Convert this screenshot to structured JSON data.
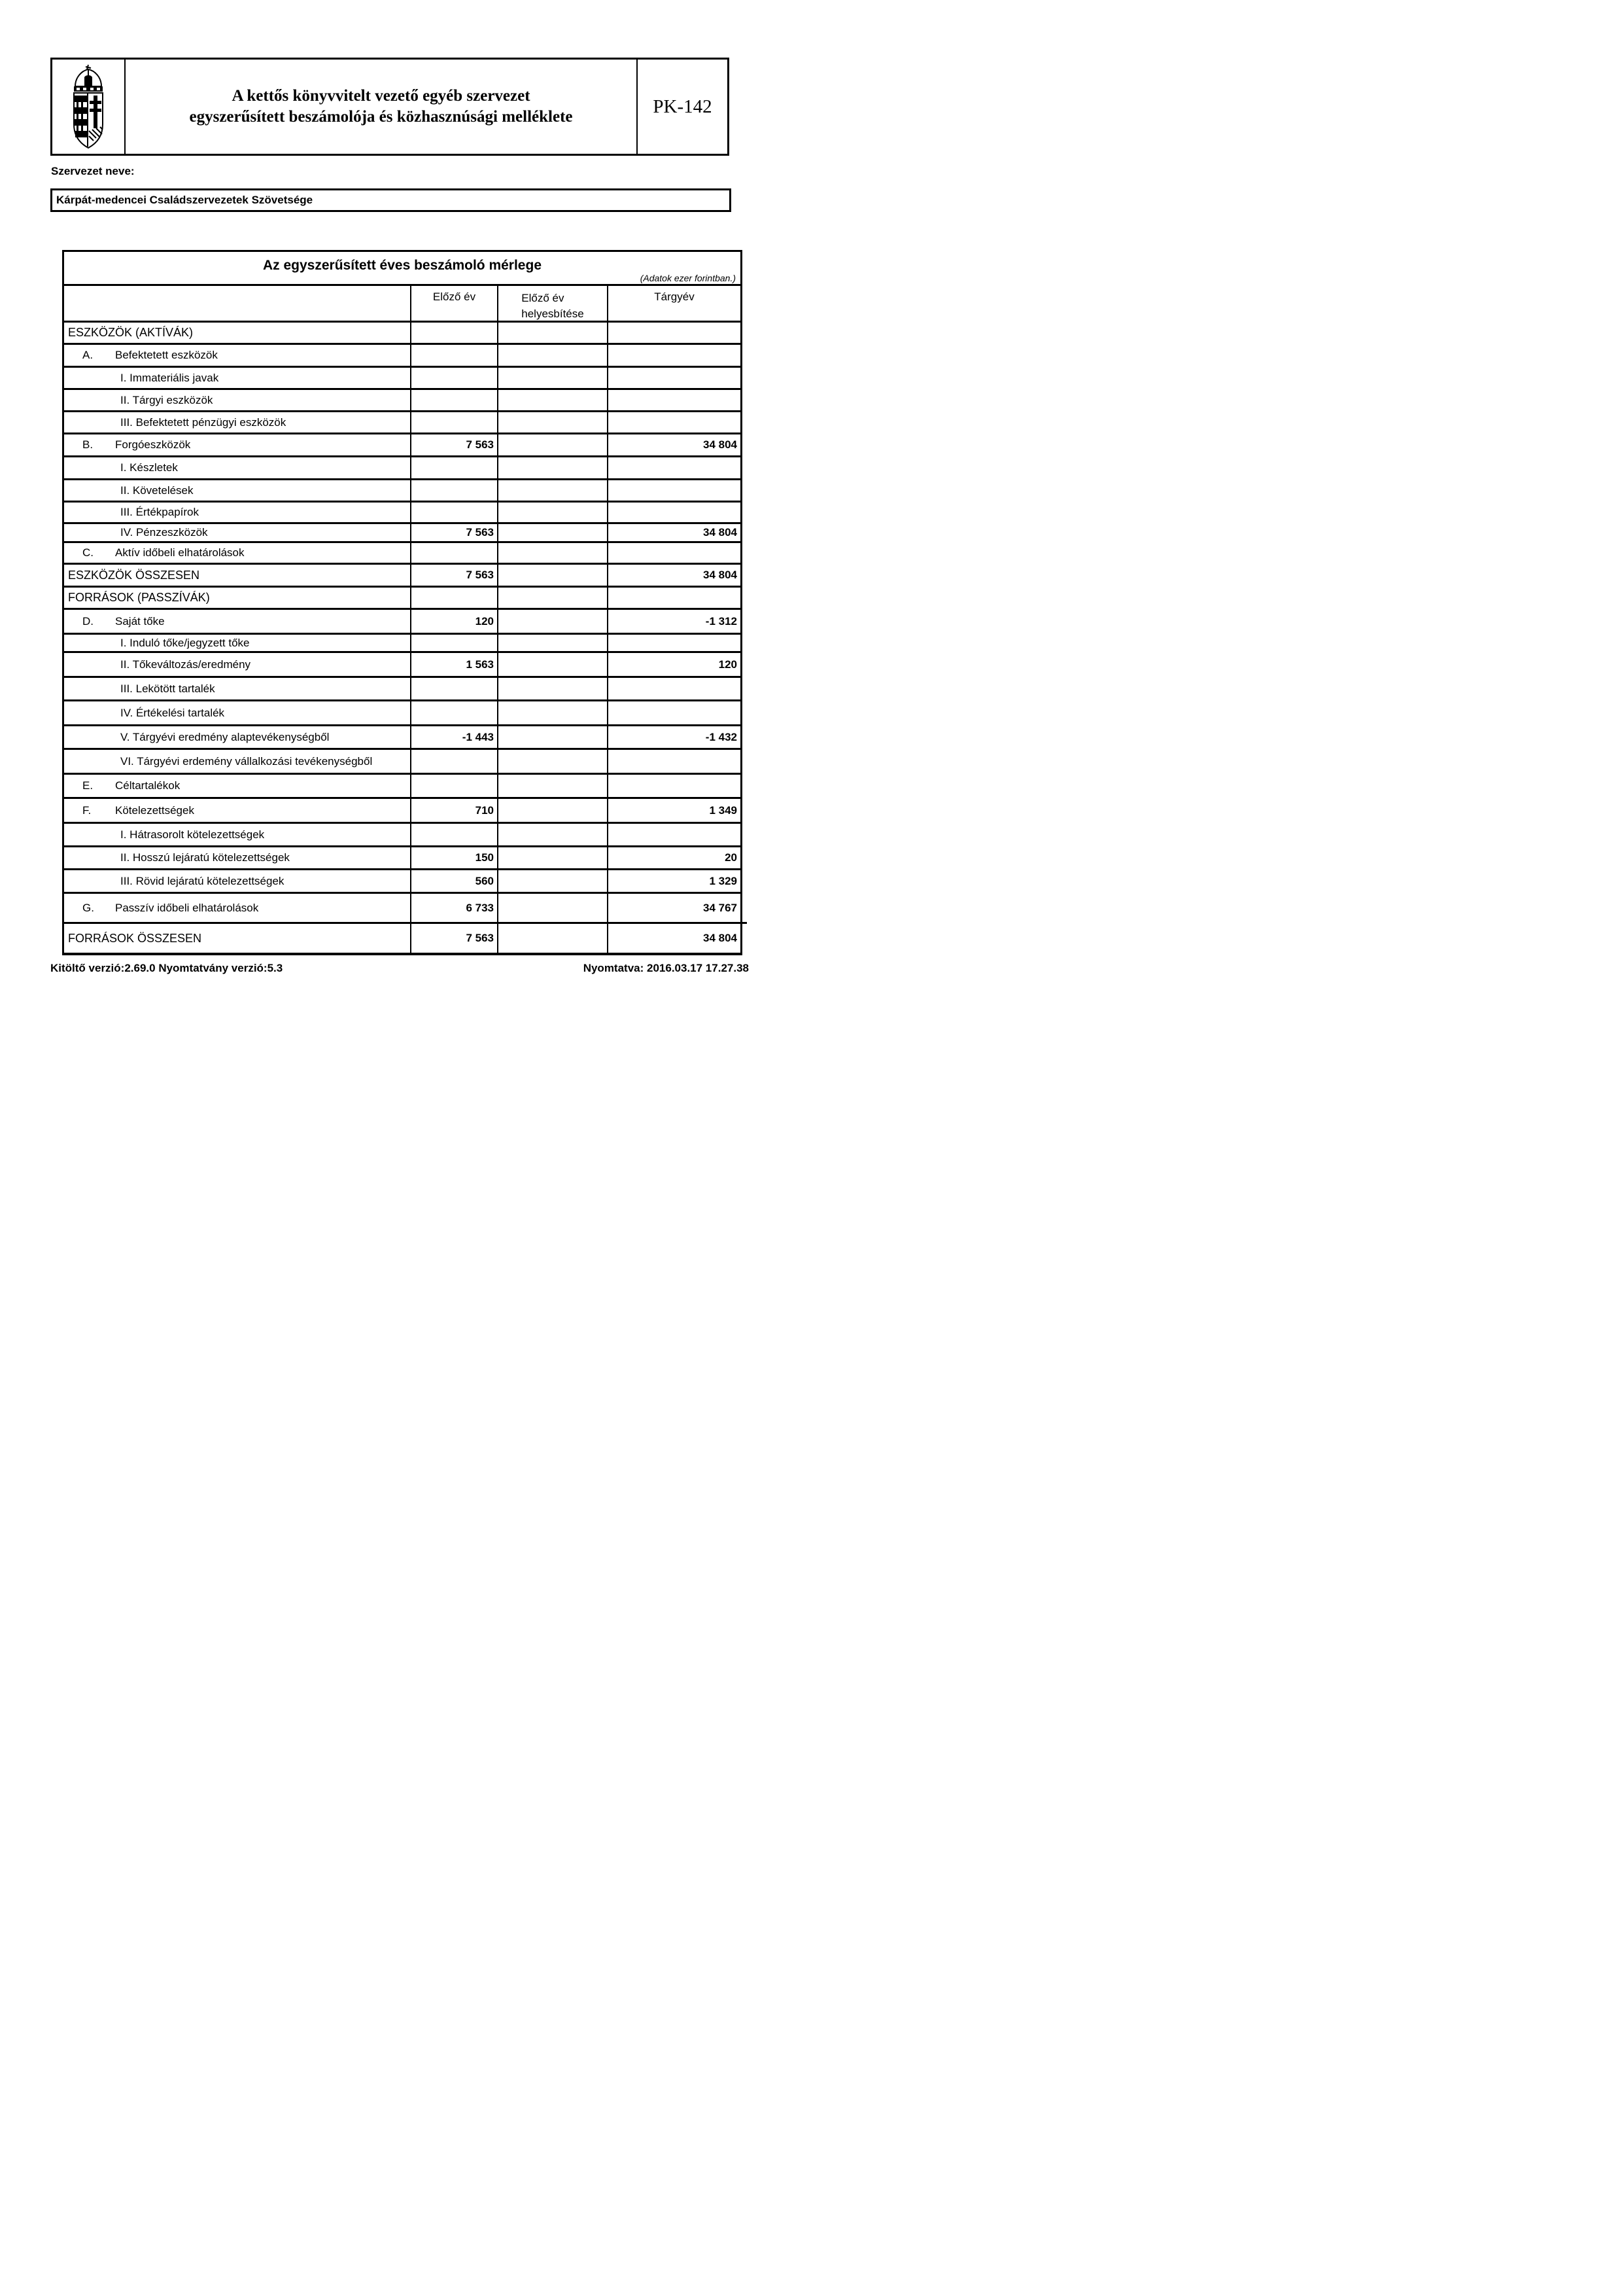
{
  "page": {
    "form_code": "PK-142",
    "form_title_line1": "A kettős könyvvitelt vezető egyéb szervezet",
    "form_title_line2": "egyszerűsített beszámolója és közhasznúsági melléklete",
    "org_name_label": "Szervezet neve:",
    "org_name": "Kárpát-medencei Családszervezetek Szövetsége",
    "footer_left": "Kitöltő verzió:2.69.0 Nyomtatvány verzió:5.3",
    "footer_right": "Nyomtatva: 2016.03.17 17.27.38",
    "ink_color": "#000000",
    "paper_color": "#ffffff"
  },
  "logo": {
    "icon": "hungarian-coat-of-arms",
    "color": "#000000"
  },
  "table": {
    "title": "Az egyszerűsített éves beszámoló mérlege",
    "unit_note": "(Adatok ezer forintban.)",
    "columns": [
      {
        "label": "Előző év"
      },
      {
        "label": "Előző év",
        "label2": "helyesbítése"
      },
      {
        "label": "Tárgyév"
      }
    ],
    "rows": [
      {
        "kind": "section",
        "label": "ESZKÖZÖK (AKTÍVÁK)",
        "prev": "",
        "adj": "",
        "curr": ""
      },
      {
        "kind": "letter",
        "letter": "A.",
        "label": "Befektetett eszközök",
        "prev": "",
        "adj": "",
        "curr": ""
      },
      {
        "kind": "roman",
        "label": "I. Immateriális javak",
        "prev": "",
        "adj": "",
        "curr": ""
      },
      {
        "kind": "roman",
        "label": "II. Tárgyi eszközök",
        "prev": "",
        "adj": "",
        "curr": ""
      },
      {
        "kind": "roman",
        "label": "III. Befektetett pénzügyi eszközök",
        "prev": "",
        "adj": "",
        "curr": ""
      },
      {
        "kind": "letter",
        "letter": "B.",
        "label": "Forgóeszközök",
        "prev": "7 563",
        "adj": "",
        "curr": "34 804"
      },
      {
        "kind": "roman",
        "label": "I. Készletek",
        "prev": "",
        "adj": "",
        "curr": ""
      },
      {
        "kind": "roman",
        "label": "II. Követelések",
        "prev": "",
        "adj": "",
        "curr": ""
      },
      {
        "kind": "roman",
        "label": "III. Értékpapírok",
        "prev": "",
        "adj": "",
        "curr": ""
      },
      {
        "kind": "roman",
        "label": "IV. Pénzeszközök",
        "prev": "7 563",
        "adj": "",
        "curr": "34 804"
      },
      {
        "kind": "letter",
        "letter": "C.",
        "label": "Aktív időbeli elhatárolások",
        "prev": "",
        "adj": "",
        "curr": ""
      },
      {
        "kind": "section",
        "label": "ESZKÖZÖK ÖSSZESEN",
        "prev": "7 563",
        "adj": "",
        "curr": "34 804"
      },
      {
        "kind": "section",
        "label": "FORRÁSOK (PASSZÍVÁK)",
        "prev": "",
        "adj": "",
        "curr": ""
      },
      {
        "kind": "letter",
        "letter": "D.",
        "label": "Saját tőke",
        "prev": "120",
        "adj": "",
        "curr": "-1 312"
      },
      {
        "kind": "roman",
        "label": "I. Induló tőke/jegyzett tőke",
        "prev": "",
        "adj": "",
        "curr": ""
      },
      {
        "kind": "roman",
        "label": "II. Tőkeváltozás/eredmény",
        "prev": "1 563",
        "adj": "",
        "curr": "120"
      },
      {
        "kind": "roman",
        "label": "III. Lekötött tartalék",
        "prev": "",
        "adj": "",
        "curr": ""
      },
      {
        "kind": "roman",
        "label": "IV. Értékelési tartalék",
        "prev": "",
        "adj": "",
        "curr": ""
      },
      {
        "kind": "roman",
        "label": "V. Tárgyévi eredmény alaptevékenységből",
        "prev": "-1 443",
        "adj": "",
        "curr": "-1 432"
      },
      {
        "kind": "roman",
        "label": "VI. Tárgyévi erdemény vállalkozási tevékenységből",
        "prev": "",
        "adj": "",
        "curr": ""
      },
      {
        "kind": "letter",
        "letter": "E.",
        "label": "Céltartalékok",
        "prev": "",
        "adj": "",
        "curr": ""
      },
      {
        "kind": "letter",
        "letter": "F.",
        "label": "Kötelezettségek",
        "prev": "710",
        "adj": "",
        "curr": "1 349"
      },
      {
        "kind": "roman",
        "label": "I. Hátrasorolt kötelezettségek",
        "prev": "",
        "adj": "",
        "curr": ""
      },
      {
        "kind": "roman",
        "label": "II. Hosszú lejáratú kötelezettségek",
        "prev": "150",
        "adj": "",
        "curr": "20"
      },
      {
        "kind": "roman",
        "label": "III. Rövid lejáratú kötelezettségek",
        "prev": "560",
        "adj": "",
        "curr": "1 329"
      },
      {
        "kind": "letter",
        "letter": "G.",
        "label": "Passzív időbeli elhatárolások",
        "prev": "6 733",
        "adj": "",
        "curr": "34 767"
      },
      {
        "kind": "section",
        "label": "FORRÁSOK ÖSSZESEN",
        "prev": "7 563",
        "adj": "",
        "curr": "34 804"
      }
    ]
  }
}
